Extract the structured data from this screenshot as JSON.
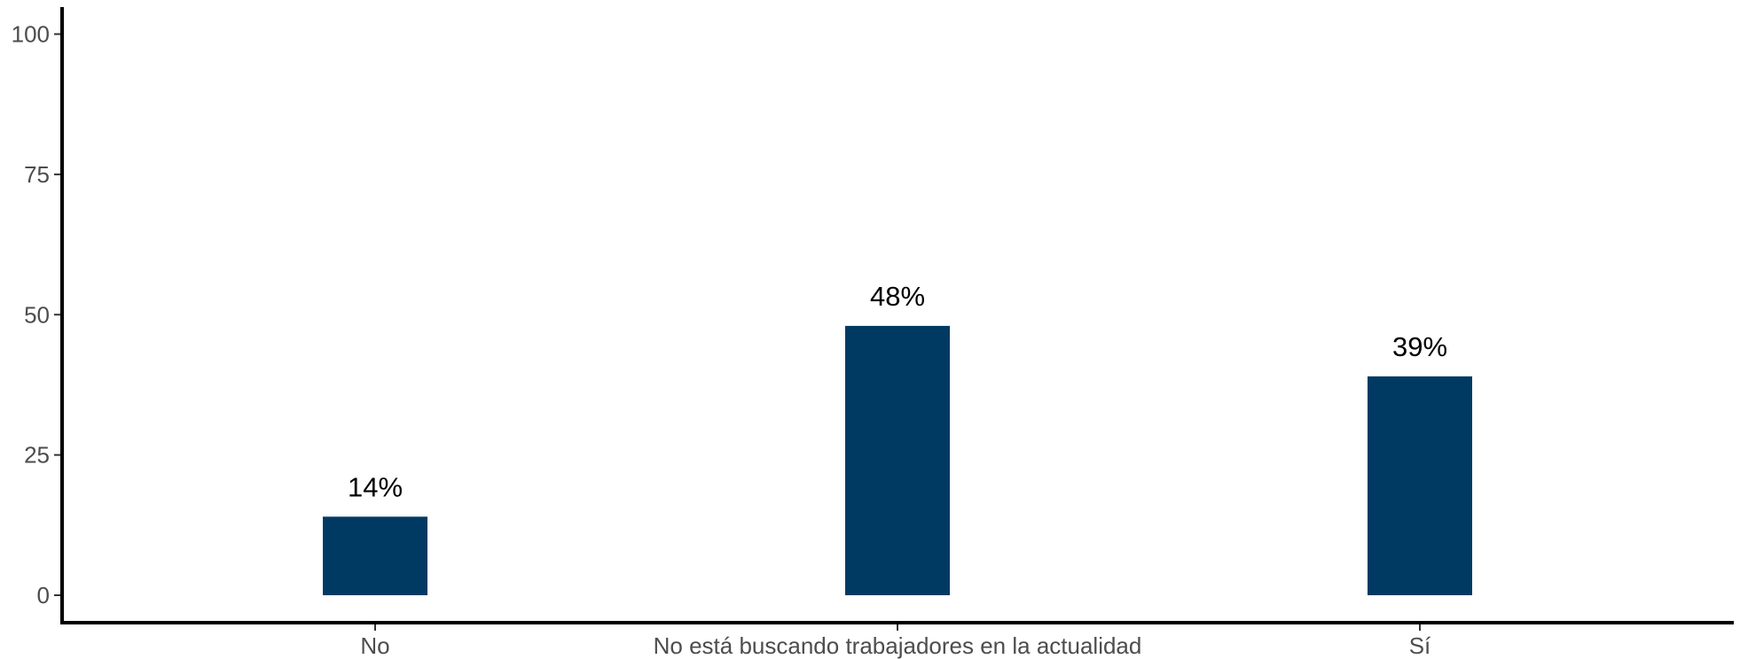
{
  "chart_data": {
    "type": "bar",
    "categories": [
      "No",
      "No está buscando trabajadores en la actualidad",
      "Sí"
    ],
    "values": [
      14,
      48,
      39
    ],
    "data_labels": [
      "14%",
      "48%",
      "39%"
    ],
    "title": "",
    "xlabel": "",
    "ylabel": "",
    "ylim": [
      0,
      100
    ],
    "yticks": [
      0,
      25,
      50,
      75,
      100
    ],
    "grid": false,
    "legend": "none",
    "bar_color": "#003a63",
    "axis_color": "#000000"
  }
}
